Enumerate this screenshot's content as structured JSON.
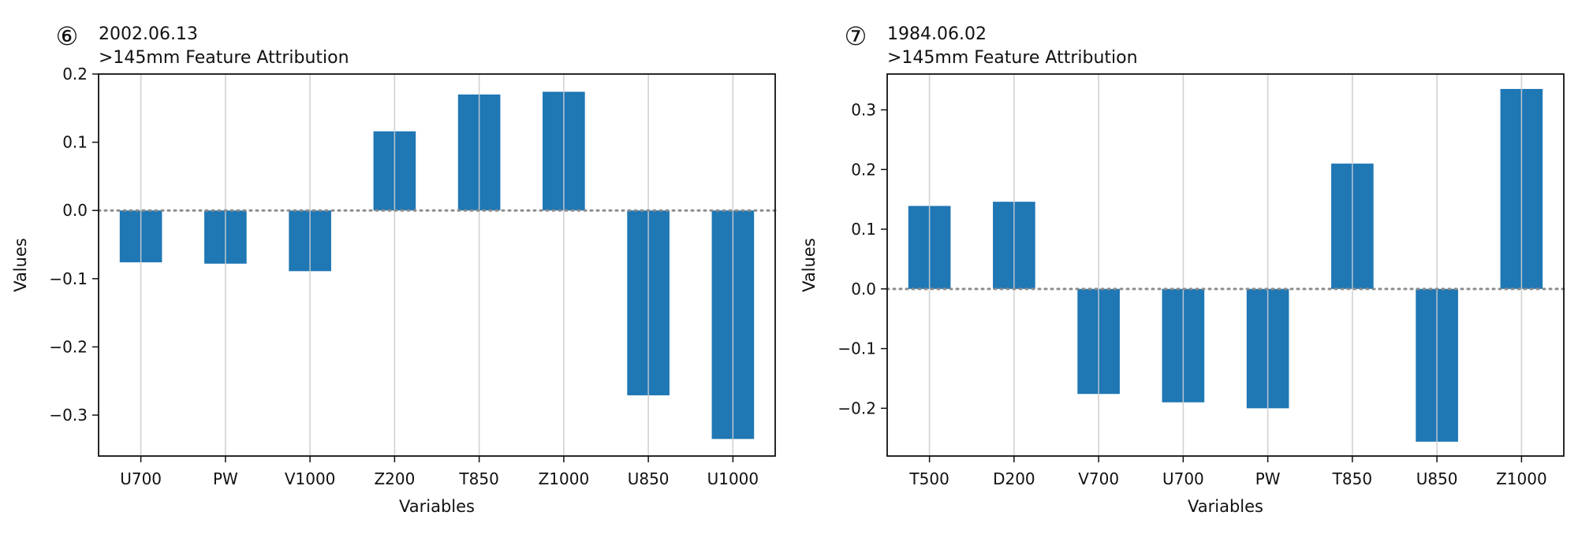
{
  "chart_data": [
    {
      "type": "bar",
      "badge": "⑥",
      "date": "2002.06.13",
      "title": ">145mm Feature Attribution",
      "xlabel": "Variables",
      "ylabel": "Values",
      "ylim": [
        -0.36,
        0.2
      ],
      "yticks": [
        0.2,
        0.1,
        0.0,
        -0.1,
        -0.2,
        -0.3
      ],
      "ytick_labels": [
        "0.2",
        "0.1",
        "0.0",
        "−0.1",
        "−0.2",
        "−0.3"
      ],
      "categories": [
        "U700",
        "PW",
        "V1000",
        "Z200",
        "T850",
        "Z1000",
        "U850",
        "U1000"
      ],
      "values": [
        -0.076,
        -0.078,
        -0.089,
        0.116,
        0.17,
        0.174,
        -0.271,
        -0.335
      ],
      "grid": "vertical",
      "zero_line": true
    },
    {
      "type": "bar",
      "badge": "⑦",
      "date": "1984.06.02",
      "title": ">145mm Feature Attribution",
      "xlabel": "Variables",
      "ylabel": "Values",
      "ylim": [
        -0.28,
        0.36
      ],
      "yticks": [
        0.3,
        0.2,
        0.1,
        0.0,
        -0.1,
        -0.2
      ],
      "ytick_labels": [
        "0.3",
        "0.2",
        "0.1",
        "0.0",
        "−0.1",
        "−0.2"
      ],
      "categories": [
        "T500",
        "D200",
        "V700",
        "U700",
        "PW",
        "T850",
        "U850",
        "Z1000"
      ],
      "values": [
        0.139,
        0.146,
        -0.176,
        -0.19,
        -0.2,
        0.21,
        -0.256,
        0.335
      ],
      "grid": "vertical",
      "zero_line": true
    }
  ]
}
